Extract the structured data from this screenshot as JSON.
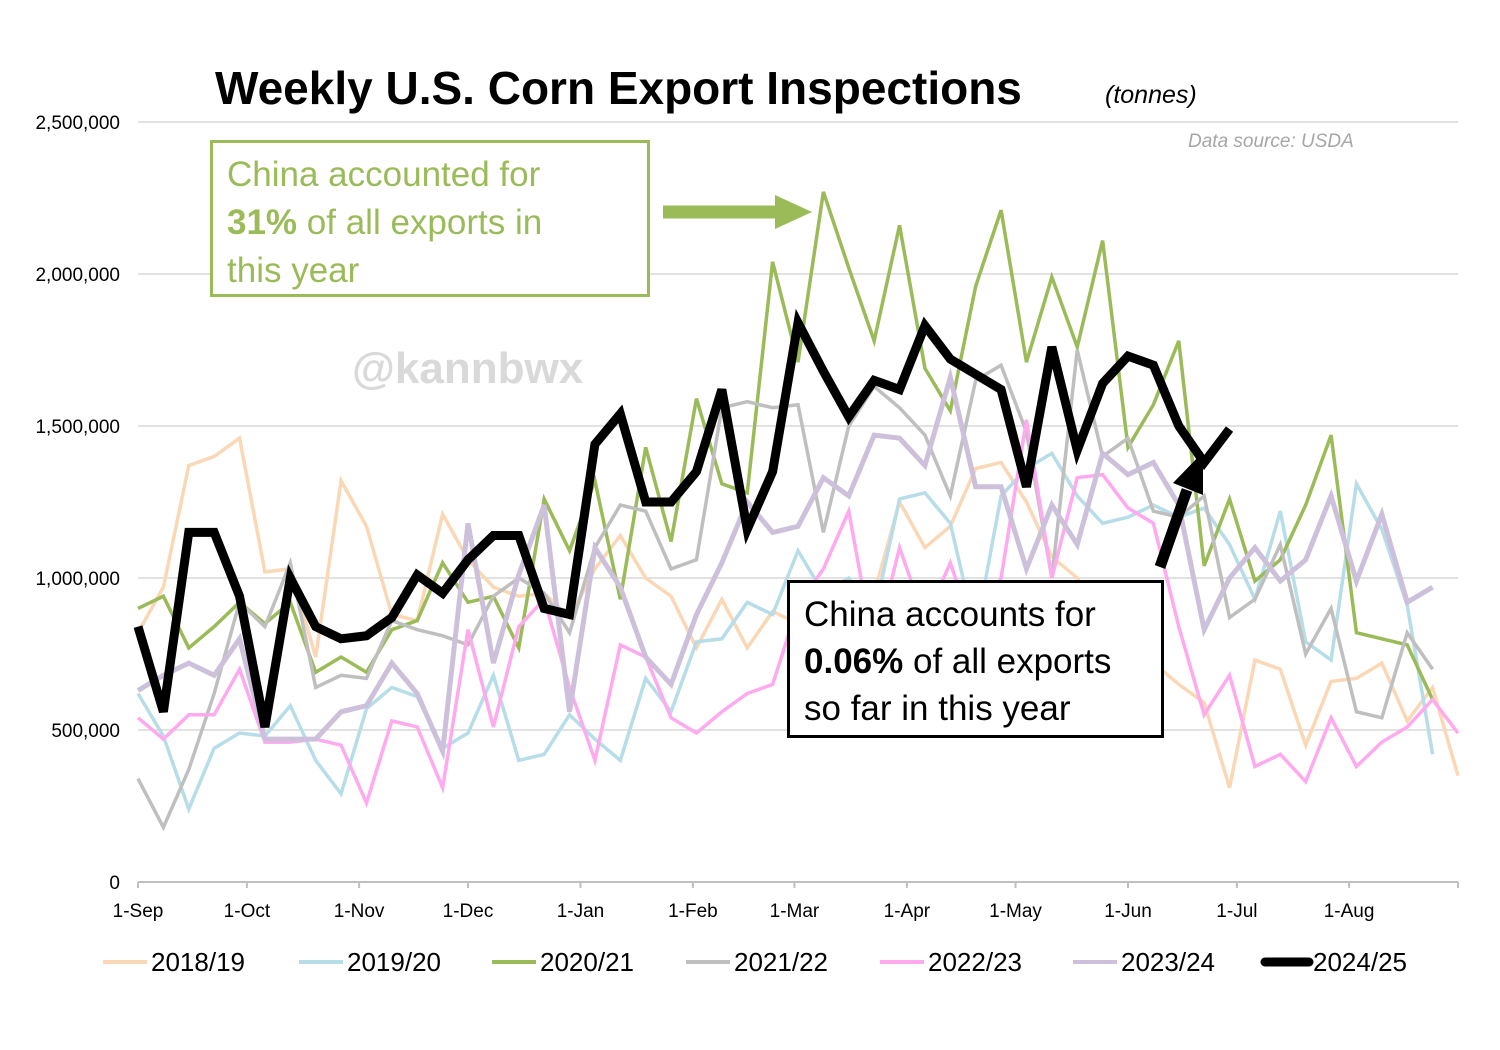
{
  "chart_data": {
    "type": "line",
    "title": "Weekly U.S. Corn Export Inspections",
    "unit_label": "(tonnes)",
    "source": "Data source: USDA",
    "watermark": "@kannbwx",
    "ylim": [
      0,
      2500000
    ],
    "y_ticks": [
      0,
      500000,
      1000000,
      1500000,
      2000000,
      2500000
    ],
    "y_tick_labels": [
      "0",
      "500,000",
      "1,000,000",
      "1,500,000",
      "2,000,000",
      "2,500,000"
    ],
    "x_ticks": [
      "1-Sep",
      "1-Oct",
      "1-Nov",
      "1-Dec",
      "1-Jan",
      "1-Feb",
      "1-Mar",
      "1-Apr",
      "1-May",
      "1-Jun",
      "1-Jul",
      "1-Aug"
    ],
    "x_tick_weeks": [
      0,
      4.29,
      8.71,
      13,
      17.43,
      21.86,
      25.86,
      30.29,
      34.57,
      39,
      43.29,
      47.71
    ],
    "weeks": 52,
    "series": [
      {
        "name": "2018/19",
        "color": "#fad7b5",
        "width": 3.5,
        "values": [
          820000,
          970000,
          1370000,
          1400000,
          1460000,
          1020000,
          1030000,
          740000,
          1320000,
          1170000,
          880000,
          860000,
          1210000,
          1060000,
          970000,
          940000,
          950000,
          870000,
          1030000,
          1140000,
          1000000,
          940000,
          770000,
          930000,
          770000,
          890000,
          850000,
          800000,
          820000,
          950000,
          1250000,
          1100000,
          1170000,
          1360000,
          1380000,
          1250000,
          1070000,
          1000000,
          780000,
          850000,
          720000,
          650000,
          590000,
          310000,
          730000,
          700000,
          450000,
          660000,
          670000,
          720000,
          530000,
          640000,
          350000
        ]
      },
      {
        "name": "2019/20",
        "color": "#b7dde8",
        "width": 3.5,
        "values": [
          620000,
          480000,
          240000,
          440000,
          490000,
          480000,
          580000,
          400000,
          290000,
          570000,
          640000,
          610000,
          440000,
          490000,
          680000,
          400000,
          420000,
          550000,
          470000,
          400000,
          670000,
          560000,
          790000,
          800000,
          920000,
          880000,
          1090000,
          950000,
          1000000,
          880000,
          1260000,
          1280000,
          1180000,
          820000,
          1270000,
          1360000,
          1410000,
          1270000,
          1180000,
          1200000,
          1240000,
          1200000,
          1230000,
          1110000,
          930000,
          1220000,
          790000,
          730000,
          1310000,
          1160000,
          910000,
          420000
        ]
      },
      {
        "name": "2020/21",
        "color": "#9bbb59",
        "width": 3.5,
        "values": [
          900000,
          940000,
          770000,
          840000,
          920000,
          850000,
          920000,
          690000,
          740000,
          690000,
          830000,
          860000,
          1050000,
          920000,
          940000,
          770000,
          1260000,
          1090000,
          1320000,
          930000,
          1430000,
          1120000,
          1590000,
          1310000,
          1280000,
          2040000,
          1710000,
          2270000,
          2020000,
          1780000,
          2160000,
          1690000,
          1550000,
          1960000,
          2210000,
          1710000,
          1990000,
          1760000,
          2110000,
          1430000,
          1570000,
          1780000,
          1040000,
          1260000,
          990000,
          1060000,
          1240000,
          1470000,
          820000,
          800000,
          780000,
          600000
        ]
      },
      {
        "name": "2021/22",
        "color": "#bfbfbf",
        "width": 3.5,
        "values": [
          340000,
          180000,
          370000,
          620000,
          920000,
          840000,
          1050000,
          640000,
          680000,
          670000,
          860000,
          830000,
          810000,
          780000,
          940000,
          1000000,
          950000,
          820000,
          1100000,
          1240000,
          1220000,
          1030000,
          1060000,
          1560000,
          1580000,
          1560000,
          1570000,
          1150000,
          1500000,
          1630000,
          1560000,
          1470000,
          1270000,
          1650000,
          1700000,
          1480000,
          1000000,
          1750000,
          1400000,
          1460000,
          1220000,
          1200000,
          1270000,
          870000,
          930000,
          1110000,
          750000,
          900000,
          560000,
          540000,
          820000,
          700000
        ]
      },
      {
        "name": "2022/23",
        "color": "#ffaaee",
        "width": 3.5,
        "values": [
          540000,
          470000,
          550000,
          550000,
          700000,
          460000,
          460000,
          470000,
          450000,
          260000,
          530000,
          510000,
          310000,
          830000,
          510000,
          840000,
          930000,
          640000,
          400000,
          780000,
          740000,
          540000,
          490000,
          560000,
          620000,
          650000,
          910000,
          1030000,
          1220000,
          760000,
          1100000,
          860000,
          1050000,
          800000,
          1000000,
          1520000,
          1000000,
          1330000,
          1340000,
          1230000,
          1180000,
          840000,
          550000,
          680000,
          380000,
          420000,
          330000,
          540000,
          380000,
          460000,
          510000,
          600000,
          490000
        ]
      },
      {
        "name": "2023/24",
        "color": "#ccc0da",
        "width": 5,
        "values": [
          630000,
          680000,
          720000,
          680000,
          800000,
          470000,
          470000,
          470000,
          560000,
          580000,
          720000,
          620000,
          430000,
          1180000,
          720000,
          1010000,
          1240000,
          560000,
          1100000,
          970000,
          740000,
          650000,
          880000,
          1050000,
          1250000,
          1150000,
          1170000,
          1330000,
          1270000,
          1470000,
          1460000,
          1370000,
          1660000,
          1300000,
          1300000,
          1030000,
          1240000,
          1110000,
          1410000,
          1340000,
          1380000,
          1240000,
          830000,
          1000000,
          1100000,
          990000,
          1060000,
          1270000,
          990000,
          1210000,
          920000,
          970000
        ]
      },
      {
        "name": "2024/25",
        "color": "#000000",
        "width": 9,
        "values": [
          840000,
          560000,
          1150000,
          1150000,
          940000,
          510000,
          1000000,
          840000,
          800000,
          810000,
          870000,
          1010000,
          950000,
          1060000,
          1140000,
          1140000,
          900000,
          880000,
          1440000,
          1540000,
          1250000,
          1250000,
          1350000,
          1620000,
          1160000,
          1350000,
          1840000,
          1680000,
          1530000,
          1650000,
          1620000,
          1830000,
          1720000,
          1670000,
          1620000,
          1300000,
          1760000,
          1420000,
          1640000,
          1730000,
          1700000,
          1500000,
          1380000,
          1490000
        ]
      }
    ],
    "annotations": [
      {
        "id": "green",
        "line1": "China accounted for",
        "bold": "31%",
        "rest2": " of all exports in",
        "line3": "this year"
      },
      {
        "id": "black",
        "line1": "China accounts for",
        "bold": "0.06%",
        "rest2": " of all exports",
        "line3": "so far in this year"
      }
    ]
  }
}
